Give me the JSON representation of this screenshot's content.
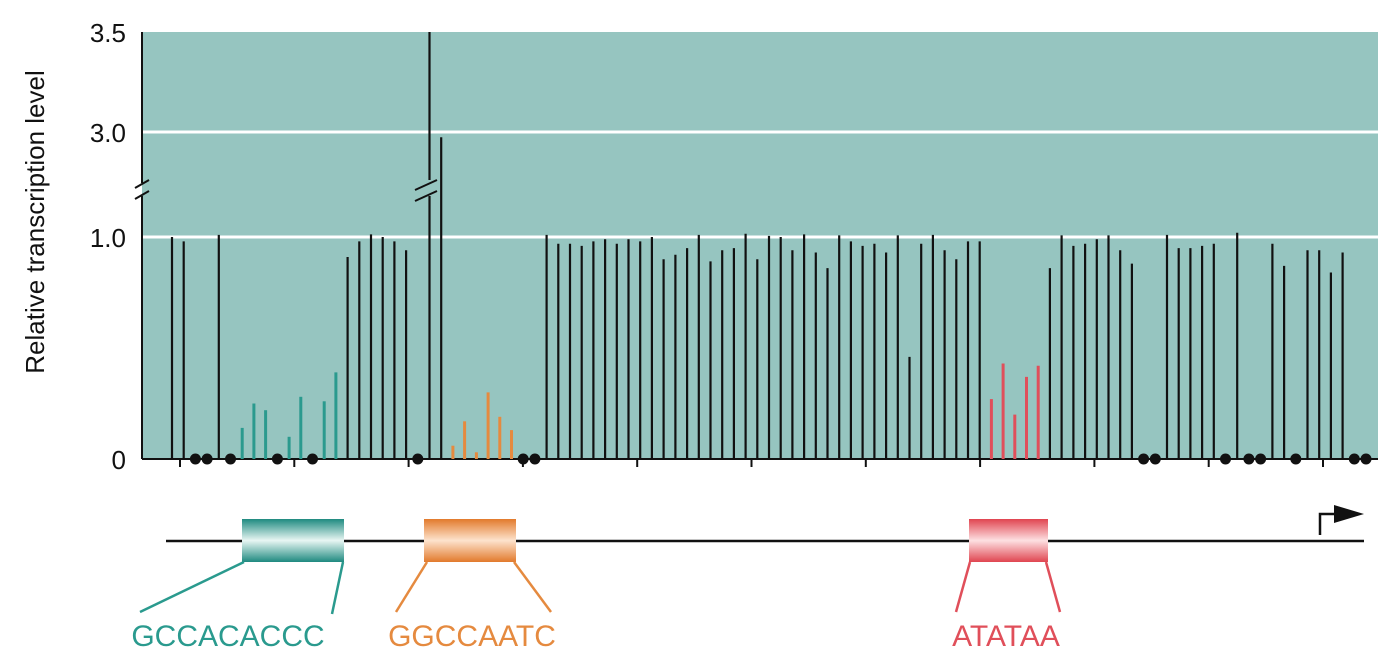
{
  "colors": {
    "background": "#96c5c0",
    "gridline": "#ffffff",
    "bar": "#111111",
    "teal": "#2a9a8e",
    "orange": "#e58a3f",
    "red": "#e04f5a"
  },
  "chart_data": {
    "type": "bar",
    "ylabel": "Relative transcription level",
    "y_ticks": [
      "3.5",
      "3.0",
      "1.0",
      "0"
    ],
    "y_axis_break": true,
    "grid": true,
    "legend": "none",
    "bars": [
      {
        "v": 1.0,
        "c": "black"
      },
      {
        "v": 0.98,
        "c": "black"
      },
      {
        "v": 0,
        "c": "black"
      },
      {
        "v": 0,
        "c": "black"
      },
      {
        "v": 1.04,
        "c": "black"
      },
      {
        "v": 0,
        "c": "black"
      },
      {
        "v": 0.14,
        "c": "teal"
      },
      {
        "v": 0.25,
        "c": "teal"
      },
      {
        "v": 0.22,
        "c": "teal"
      },
      {
        "v": 0,
        "c": "teal"
      },
      {
        "v": 0.1,
        "c": "teal"
      },
      {
        "v": 0.28,
        "c": "teal"
      },
      {
        "v": 0,
        "c": "teal"
      },
      {
        "v": 0.26,
        "c": "teal"
      },
      {
        "v": 0.39,
        "c": "teal"
      },
      {
        "v": 0.91,
        "c": "black"
      },
      {
        "v": 0.98,
        "c": "black"
      },
      {
        "v": 1.05,
        "c": "black"
      },
      {
        "v": 1.0,
        "c": "black"
      },
      {
        "v": 0.98,
        "c": "black"
      },
      {
        "v": 0.94,
        "c": "black"
      },
      {
        "v": 0,
        "c": "black"
      },
      {
        "v": 3.5,
        "c": "black"
      },
      {
        "v": 2.9,
        "c": "black"
      },
      {
        "v": 0.06,
        "c": "orange"
      },
      {
        "v": 0.17,
        "c": "orange"
      },
      {
        "v": 0.03,
        "c": "orange"
      },
      {
        "v": 0.3,
        "c": "orange"
      },
      {
        "v": 0.19,
        "c": "orange"
      },
      {
        "v": 0.13,
        "c": "orange"
      },
      {
        "v": 0,
        "c": "black"
      },
      {
        "v": 0,
        "c": "black"
      },
      {
        "v": 1.04,
        "c": "black"
      },
      {
        "v": 0.97,
        "c": "black"
      },
      {
        "v": 0.97,
        "c": "black"
      },
      {
        "v": 0.96,
        "c": "black"
      },
      {
        "v": 0.98,
        "c": "black"
      },
      {
        "v": 0.99,
        "c": "black"
      },
      {
        "v": 0.97,
        "c": "black"
      },
      {
        "v": 0.99,
        "c": "black"
      },
      {
        "v": 0.98,
        "c": "black"
      },
      {
        "v": 1.0,
        "c": "black"
      },
      {
        "v": 0.9,
        "c": "black"
      },
      {
        "v": 0.92,
        "c": "black"
      },
      {
        "v": 0.95,
        "c": "black"
      },
      {
        "v": 1.04,
        "c": "black"
      },
      {
        "v": 0.89,
        "c": "black"
      },
      {
        "v": 0.94,
        "c": "black"
      },
      {
        "v": 0.95,
        "c": "black"
      },
      {
        "v": 1.06,
        "c": "black"
      },
      {
        "v": 0.9,
        "c": "black"
      },
      {
        "v": 1.02,
        "c": "black"
      },
      {
        "v": 1.0,
        "c": "black"
      },
      {
        "v": 0.94,
        "c": "black"
      },
      {
        "v": 1.05,
        "c": "black"
      },
      {
        "v": 0.93,
        "c": "black"
      },
      {
        "v": 0.86,
        "c": "black"
      },
      {
        "v": 1.03,
        "c": "black"
      },
      {
        "v": 0.98,
        "c": "black"
      },
      {
        "v": 0.96,
        "c": "black"
      },
      {
        "v": 0.97,
        "c": "black"
      },
      {
        "v": 0.93,
        "c": "black"
      },
      {
        "v": 1.03,
        "c": "black"
      },
      {
        "v": 0.46,
        "c": "black"
      },
      {
        "v": 0.97,
        "c": "black"
      },
      {
        "v": 1.04,
        "c": "black"
      },
      {
        "v": 0.94,
        "c": "black"
      },
      {
        "v": 0.9,
        "c": "black"
      },
      {
        "v": 0.98,
        "c": "black"
      },
      {
        "v": 0.98,
        "c": "black"
      },
      {
        "v": 0.27,
        "c": "red"
      },
      {
        "v": 0.43,
        "c": "red"
      },
      {
        "v": 0.2,
        "c": "red"
      },
      {
        "v": 0.37,
        "c": "red"
      },
      {
        "v": 0.42,
        "c": "red"
      },
      {
        "v": 0.86,
        "c": "black"
      },
      {
        "v": 1.03,
        "c": "black"
      },
      {
        "v": 0.96,
        "c": "black"
      },
      {
        "v": 0.97,
        "c": "black"
      },
      {
        "v": 0.99,
        "c": "black"
      },
      {
        "v": 1.03,
        "c": "black"
      },
      {
        "v": 0.94,
        "c": "black"
      },
      {
        "v": 0.88,
        "c": "black"
      },
      {
        "v": 0,
        "c": "black"
      },
      {
        "v": 0,
        "c": "black"
      },
      {
        "v": 1.04,
        "c": "black"
      },
      {
        "v": 0.95,
        "c": "black"
      },
      {
        "v": 0.95,
        "c": "black"
      },
      {
        "v": 0.96,
        "c": "black"
      },
      {
        "v": 0.97,
        "c": "black"
      },
      {
        "v": 0,
        "c": "black"
      },
      {
        "v": 1.08,
        "c": "black"
      },
      {
        "v": 0,
        "c": "black"
      },
      {
        "v": 0,
        "c": "black"
      },
      {
        "v": 0.97,
        "c": "black"
      },
      {
        "v": 0.87,
        "c": "black"
      },
      {
        "v": 0,
        "c": "black"
      },
      {
        "v": 0.94,
        "c": "black"
      },
      {
        "v": 0.94,
        "c": "black"
      },
      {
        "v": 0.84,
        "c": "black"
      },
      {
        "v": 0.93,
        "c": "black"
      },
      {
        "v": 0,
        "c": "black"
      },
      {
        "v": 0,
        "c": "black"
      }
    ]
  },
  "motifs": [
    {
      "id": "caat-teal",
      "sequence": "GCCACACCC",
      "color": "teal"
    },
    {
      "id": "ccaat-orange",
      "sequence": "GGCCAATC",
      "color": "orange"
    },
    {
      "id": "tata-red",
      "sequence": "ATATAA",
      "color": "red"
    }
  ],
  "icons": {
    "transcription_start": "bent-arrow-icon"
  }
}
